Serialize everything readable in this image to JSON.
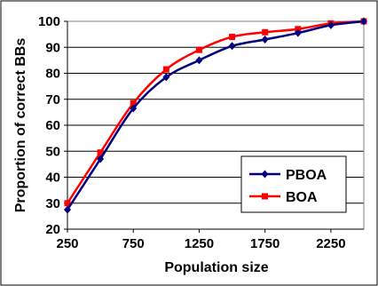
{
  "chart_data": {
    "type": "line",
    "x": [
      250,
      500,
      750,
      1000,
      1250,
      1500,
      1750,
      2000,
      2250,
      2500
    ],
    "xlabel": "Population size",
    "ylabel": "Proportion of correct BBs",
    "xticks": [
      250,
      750,
      1250,
      1750,
      2250
    ],
    "yticks": [
      20,
      30,
      40,
      50,
      60,
      70,
      80,
      90,
      100
    ],
    "xlim": [
      250,
      2500
    ],
    "ylim": [
      20,
      100
    ],
    "grid": "horizontal",
    "legend_position": "bottom-right",
    "series": [
      {
        "name": "PBOA",
        "color": "#000080",
        "marker": "diamond",
        "values": [
          27.5,
          47,
          66.5,
          78.5,
          85,
          90.5,
          93,
          95.5,
          98.5,
          100
        ]
      },
      {
        "name": "BOA",
        "color": "#ff0000",
        "marker": "square",
        "values": [
          30,
          49.5,
          68.5,
          81.5,
          89,
          94,
          95.8,
          97,
          99.2,
          100
        ]
      }
    ]
  }
}
